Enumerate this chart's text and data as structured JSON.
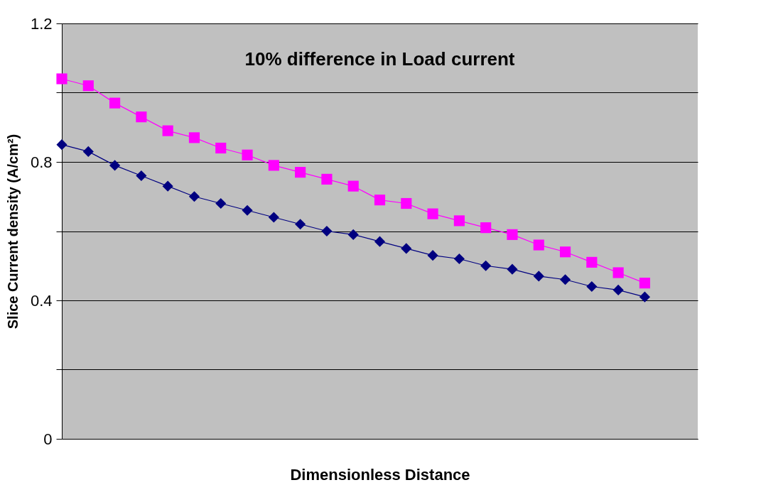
{
  "chart_data": {
    "type": "line",
    "title": "10% difference in Load current",
    "xlabel": "Dimensionless Distance",
    "ylabel": "Slice Current density (A/cm²)",
    "categories": [
      null,
      null,
      null,
      null,
      null,
      null,
      null,
      null,
      null,
      null,
      null,
      null,
      null,
      null,
      null,
      null,
      null,
      null,
      null,
      null,
      null,
      null,
      null,
      null,
      null
    ],
    "series": [
      {
        "color": "#ff00ff",
        "marker": "square",
        "values": [
          1.04,
          1.02,
          0.97,
          0.93,
          0.89,
          0.87,
          0.84,
          0.82,
          0.79,
          0.77,
          0.75,
          0.73,
          0.69,
          0.68,
          0.65,
          0.63,
          0.61,
          0.59,
          0.56,
          0.54,
          0.51,
          0.48,
          0.45,
          null,
          null
        ]
      },
      {
        "color": "#000080",
        "marker": "diamond",
        "values": [
          0.85,
          0.83,
          0.79,
          0.76,
          0.73,
          0.7,
          0.68,
          0.66,
          0.64,
          0.62,
          0.6,
          0.59,
          0.57,
          0.55,
          0.53,
          0.52,
          0.5,
          0.49,
          0.47,
          0.46,
          0.44,
          0.43,
          0.41,
          null,
          null
        ]
      }
    ],
    "ylim": [
      0,
      1.2
    ],
    "yticks": [
      0,
      {
        "value": 0.2,
        "label": null
      },
      0.4,
      {
        "value": 0.6,
        "label": null
      },
      0.8,
      {
        "value": 1.0,
        "label": null
      },
      1.2
    ],
    "grid": "y",
    "tick_labels": "y",
    "line_style": "solid"
  }
}
